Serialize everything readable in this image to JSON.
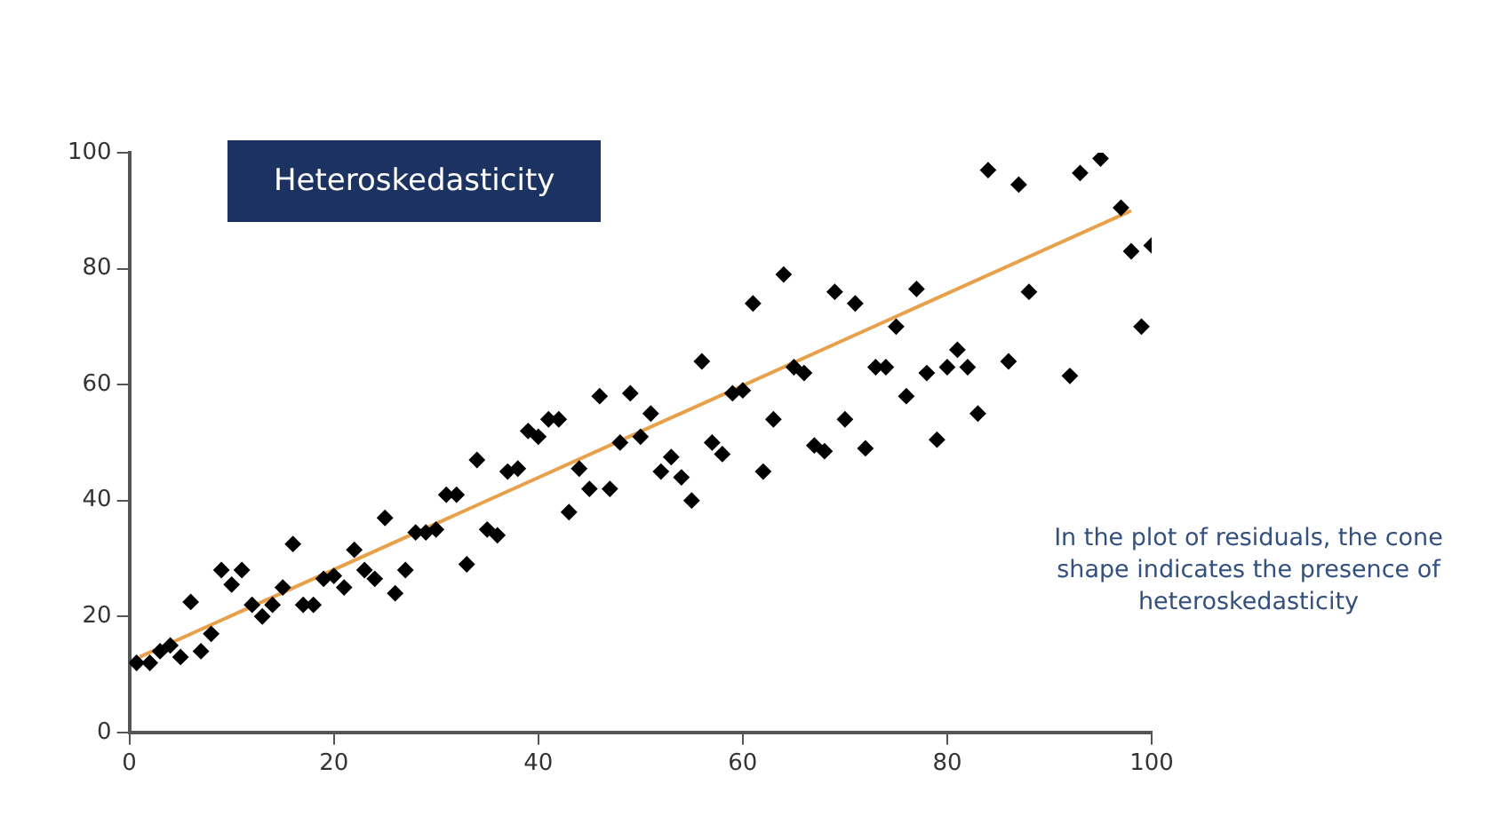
{
  "chart_data": {
    "type": "scatter",
    "title": "Heteroskedasticity",
    "annotations": [
      "In the plot of residuals, the cone shape indicates the presence of heteroskedasticity"
    ],
    "xlim": [
      0,
      100
    ],
    "ylim": [
      0,
      100
    ],
    "xticks": [
      0,
      20,
      40,
      60,
      80,
      100
    ],
    "yticks": [
      0,
      20,
      40,
      60,
      80,
      100
    ],
    "grid": false,
    "legend": false,
    "marker": "diamond",
    "series": [
      {
        "color": "#000000",
        "x": [
          0.7,
          2,
          3,
          4,
          5,
          6,
          7,
          8,
          9,
          10,
          11,
          12,
          13,
          14,
          15,
          16,
          17,
          18,
          19,
          20,
          21,
          22,
          23,
          24,
          25,
          26,
          27,
          28,
          29,
          30,
          31,
          32,
          33,
          34,
          35,
          36,
          37,
          38,
          39,
          40,
          41,
          42,
          43,
          44,
          45,
          46,
          47,
          48,
          49,
          50,
          51,
          52,
          53,
          54,
          55,
          56,
          57,
          58,
          59,
          60,
          61,
          62,
          63,
          64,
          65,
          66,
          67,
          68,
          69,
          70,
          71,
          72,
          73,
          74,
          75,
          76,
          77,
          78,
          79,
          80,
          81,
          82,
          83,
          84,
          86,
          87,
          88,
          92,
          93,
          95,
          97,
          98,
          99,
          100
        ],
        "values": [
          12,
          12,
          14,
          15,
          13,
          22.5,
          14,
          17,
          28,
          25.5,
          28,
          22,
          20,
          22,
          25,
          32.5,
          22,
          22,
          26.5,
          27,
          25,
          31.5,
          28,
          26.5,
          37,
          24,
          28,
          34.5,
          34.5,
          35,
          41,
          41,
          29,
          47,
          35,
          34,
          45,
          45.5,
          52,
          51,
          54,
          54,
          38,
          45.5,
          42,
          58,
          42,
          50,
          58.5,
          51,
          55,
          45,
          47.5,
          44,
          40,
          64,
          50,
          48,
          58.5,
          59,
          74,
          45,
          54,
          79,
          63,
          62,
          49.5,
          48.5,
          76,
          54,
          74,
          49,
          63,
          63,
          70,
          58,
          76.5,
          62,
          50.5,
          63,
          66,
          63,
          55,
          97,
          64,
          94.5,
          76,
          61.5,
          96.5,
          99,
          90.5,
          83,
          70,
          84
        ]
      },
      {
        "type": "line",
        "color": "#e8a04a",
        "x": [
          1,
          98
        ],
        "values": [
          13,
          90
        ],
        "line_style": "solid",
        "marker": "none"
      }
    ]
  }
}
